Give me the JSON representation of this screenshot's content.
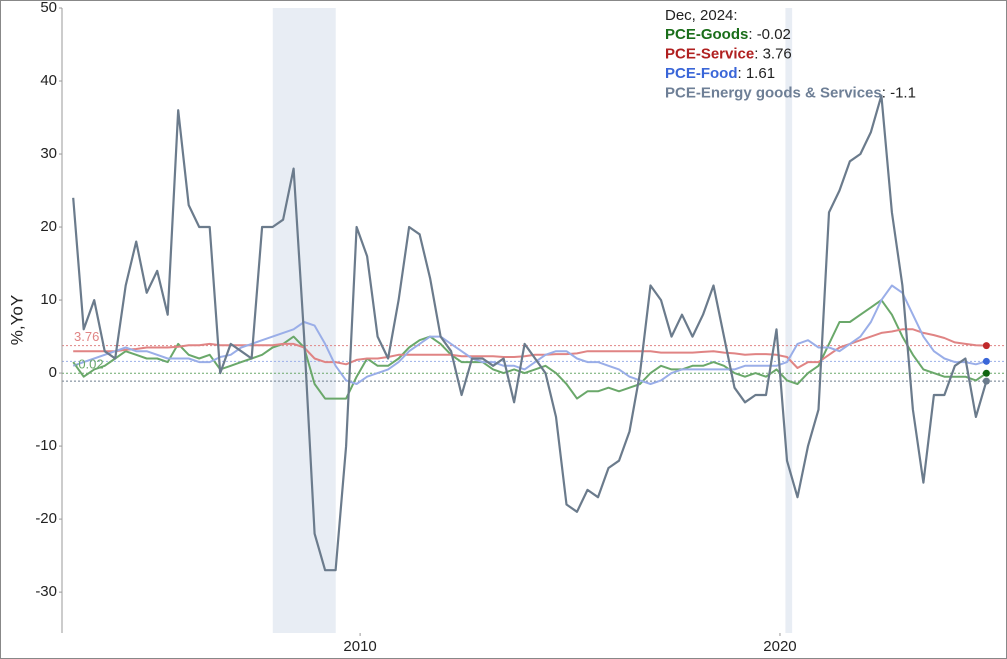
{
  "chart_data": {
    "type": "line",
    "ylabel": "%,YoY",
    "legend_title": "Dec, 2024:",
    "xlim": [
      2002.9,
      2025.36
    ],
    "xticks": [
      2010,
      2020
    ],
    "ylim": [
      -35.6,
      50
    ],
    "yticks": [
      -30,
      -20,
      -10,
      0,
      10,
      20,
      30,
      40,
      50
    ],
    "recessions": [
      [
        2007.92,
        2009.42
      ],
      [
        2020.13,
        2020.29
      ]
    ],
    "annotated_series": [
      1,
      0
    ],
    "x": [
      2003.167,
      2003.417,
      2003.667,
      2003.917,
      2004.167,
      2004.417,
      2004.667,
      2004.917,
      2005.167,
      2005.417,
      2005.667,
      2005.917,
      2006.167,
      2006.417,
      2006.667,
      2006.917,
      2007.167,
      2007.417,
      2007.667,
      2007.917,
      2008.167,
      2008.417,
      2008.667,
      2008.917,
      2009.167,
      2009.417,
      2009.667,
      2009.917,
      2010.167,
      2010.417,
      2010.667,
      2010.917,
      2011.167,
      2011.417,
      2011.667,
      2011.917,
      2012.167,
      2012.417,
      2012.667,
      2012.917,
      2013.167,
      2013.417,
      2013.667,
      2013.917,
      2014.167,
      2014.417,
      2014.667,
      2014.917,
      2015.167,
      2015.417,
      2015.667,
      2015.917,
      2016.167,
      2016.417,
      2016.667,
      2016.917,
      2017.167,
      2017.417,
      2017.667,
      2017.917,
      2018.167,
      2018.417,
      2018.667,
      2018.917,
      2019.167,
      2019.417,
      2019.667,
      2019.917,
      2020.167,
      2020.417,
      2020.667,
      2020.917,
      2021.167,
      2021.417,
      2021.667,
      2021.917,
      2022.167,
      2022.417,
      2022.667,
      2022.917,
      2023.167,
      2023.417,
      2023.667,
      2023.917,
      2024.167,
      2024.417,
      2024.667,
      2024.917
    ],
    "series": [
      {
        "name": "PCE-Goods",
        "color": "#6aa86a",
        "label_color": "#1a6e1a",
        "dot_color": "#116611",
        "values": [
          1.5,
          -0.5,
          0.5,
          1,
          2,
          3,
          2.5,
          2,
          2,
          1.5,
          4,
          2.5,
          2,
          2.5,
          0.5,
          1,
          1.5,
          2,
          2.5,
          3.5,
          4,
          5,
          3.5,
          -1.5,
          -3.5,
          -3.5,
          -3.5,
          -0.5,
          2,
          1,
          1,
          2,
          3.5,
          4.5,
          5,
          4,
          2.5,
          1.5,
          1.5,
          1.5,
          0.5,
          0,
          0.5,
          0,
          0.5,
          1,
          0,
          -1.5,
          -3.5,
          -2.5,
          -2.5,
          -2,
          -2.5,
          -2,
          -1.5,
          0,
          1,
          0.5,
          0.5,
          1,
          1,
          1.5,
          1,
          0,
          -0.5,
          0,
          -0.5,
          0.5,
          -1,
          -1.5,
          0,
          1,
          4,
          7,
          7,
          8,
          9,
          10,
          8,
          5,
          2.5,
          0.5,
          0,
          -0.5,
          -0.5,
          -0.5,
          -1,
          -0.02
        ]
      },
      {
        "name": "PCE-Service",
        "color": "#e08484",
        "label_color": "#b02020",
        "dot_color": "#c0282a",
        "values": [
          3,
          3,
          3,
          3,
          3,
          3.2,
          3.3,
          3.5,
          3.5,
          3.5,
          3.6,
          3.8,
          3.8,
          4,
          3.8,
          3.8,
          3.8,
          3.8,
          3.8,
          3.8,
          4,
          4,
          3.5,
          2,
          1.5,
          1.5,
          1.2,
          1.8,
          2,
          2,
          2.2,
          2.5,
          2.5,
          2.5,
          2.5,
          2.5,
          2.5,
          2.3,
          2.3,
          2.3,
          2.3,
          2.2,
          2.2,
          2.3,
          2.5,
          2.5,
          2.6,
          2.6,
          2.7,
          3,
          3,
          3,
          3,
          3,
          3,
          3,
          2.8,
          2.8,
          2.8,
          2.8,
          2.9,
          3,
          2.8,
          2.7,
          2.5,
          2.6,
          2.6,
          2.5,
          2.2,
          0.7,
          1.5,
          1.5,
          2.5,
          3.5,
          4,
          4.5,
          5,
          5.5,
          5.7,
          6,
          6,
          5.5,
          5.2,
          4.8,
          4.2,
          4,
          3.8,
          3.76
        ]
      },
      {
        "name": "PCE-Food",
        "color": "#9aaee8",
        "label_color": "#3a66d8",
        "dot_color": "#3a66d8",
        "values": [
          1,
          1.5,
          2,
          2.5,
          3,
          3.5,
          3,
          3,
          2.5,
          2,
          2,
          2,
          1.5,
          1.5,
          2.2,
          2.5,
          3.5,
          4,
          4.5,
          5,
          5.5,
          6,
          7,
          6.5,
          4,
          1,
          -1,
          -1.5,
          -0.5,
          0,
          0.5,
          1.5,
          3,
          4,
          5,
          5,
          4,
          3,
          2,
          1.5,
          1.5,
          1,
          1,
          0.5,
          1.5,
          2.5,
          3,
          3,
          2,
          1.5,
          1.5,
          1,
          0.5,
          -0.5,
          -1,
          -1.5,
          -1,
          0,
          0.5,
          0.5,
          0.5,
          0.5,
          0.5,
          0.5,
          1,
          1,
          1,
          1,
          1.5,
          4,
          4.5,
          3.5,
          3.5,
          3,
          4,
          5,
          7,
          10,
          12,
          11,
          8,
          5,
          3,
          2,
          1.5,
          1.5,
          1.2,
          1.61
        ]
      },
      {
        "name": "PCE-Energy goods & Services",
        "color": "#6b7b8c",
        "label_color": "#6e7f96",
        "dot_color": "#6b7b8c",
        "values": [
          24,
          6,
          10,
          3,
          2,
          12,
          18,
          11,
          14,
          8,
          36,
          23,
          20,
          20,
          0,
          4,
          3,
          2,
          20,
          20,
          21,
          28,
          5,
          -22,
          -27,
          -27,
          -10,
          20,
          16,
          5,
          2,
          10,
          20,
          19,
          13,
          5,
          3,
          -3,
          2,
          2,
          1,
          2,
          -4,
          4,
          2,
          0,
          -6,
          -18,
          -19,
          -16,
          -17,
          -13,
          -12,
          -8,
          0,
          12,
          10,
          5,
          8,
          5,
          8,
          12,
          5,
          -2,
          -4,
          -3,
          -3,
          6,
          -12,
          -17,
          -10,
          -5,
          22,
          25,
          29,
          30,
          33,
          38,
          22,
          12,
          -5,
          -15,
          -3,
          -3,
          1,
          2,
          -6,
          -1.1
        ]
      }
    ]
  }
}
